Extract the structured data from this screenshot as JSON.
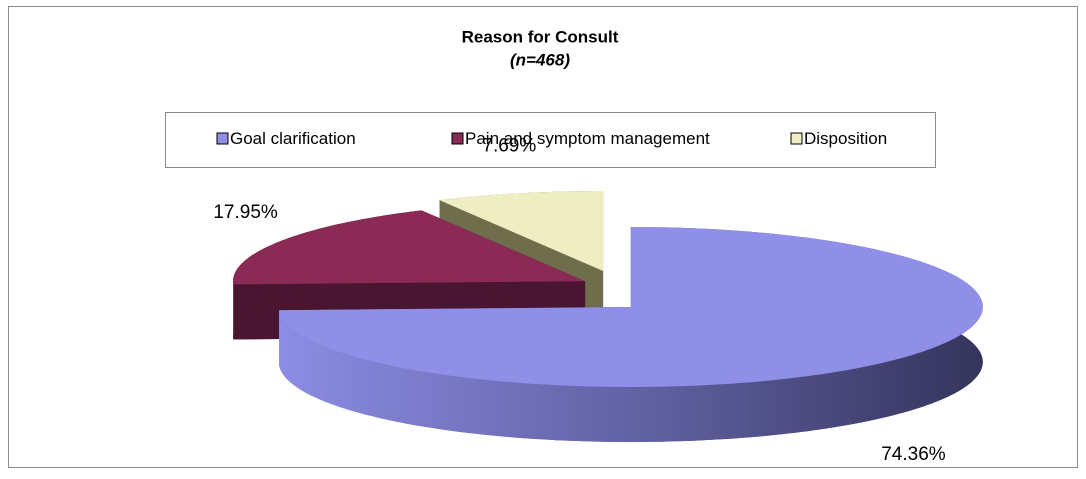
{
  "chart_data": {
    "type": "pie",
    "title": "Reason for Consult",
    "subtitle": "(n=468)",
    "categories": [
      "Goal clarification",
      "Pain and symptom management",
      "Disposition"
    ],
    "values": [
      74.36,
      17.95,
      7.69
    ],
    "value_labels": [
      "74.36%",
      "17.95%",
      "7.69%"
    ],
    "colors": [
      "#8f8fe8",
      "#8b2a55",
      "#eeeec2"
    ],
    "legend": "top"
  }
}
